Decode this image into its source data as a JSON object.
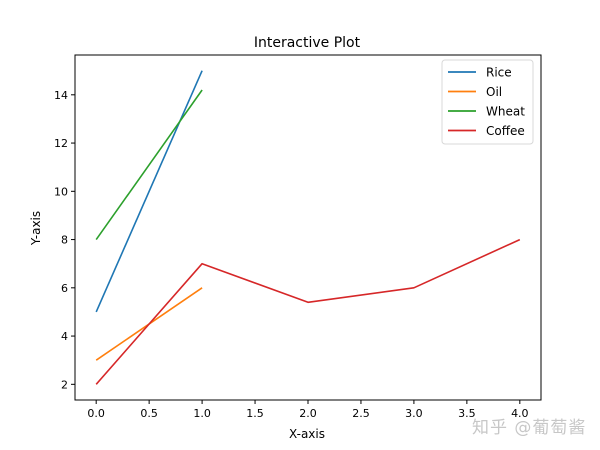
{
  "chart_data": {
    "type": "line",
    "title": "Interactive Plot",
    "xlabel": "X-axis",
    "ylabel": "Y-axis",
    "xlim": [
      -0.2,
      4.2
    ],
    "ylim": [
      1.35,
      15.65
    ],
    "xticks": [
      0.0,
      0.5,
      1.0,
      1.5,
      2.0,
      2.5,
      3.0,
      3.5,
      4.0
    ],
    "xtick_labels": [
      "0.0",
      "0.5",
      "1.0",
      "1.5",
      "2.0",
      "2.5",
      "3.0",
      "3.5",
      "4.0"
    ],
    "yticks": [
      2,
      4,
      6,
      8,
      10,
      12,
      14
    ],
    "ytick_labels": [
      "2",
      "4",
      "6",
      "8",
      "10",
      "12",
      "14"
    ],
    "grid": false,
    "legend_position": "upper right",
    "series": [
      {
        "name": "Rice",
        "color": "#1f77b4",
        "x": [
          0,
          1
        ],
        "y": [
          5,
          15
        ]
      },
      {
        "name": "Oil",
        "color": "#ff7f0e",
        "x": [
          0,
          1
        ],
        "y": [
          3,
          6
        ]
      },
      {
        "name": "Wheat",
        "color": "#2ca02c",
        "x": [
          0,
          1
        ],
        "y": [
          8,
          14.2
        ]
      },
      {
        "name": "Coffee",
        "color": "#d62728",
        "x": [
          0,
          1,
          2,
          3,
          4
        ],
        "y": [
          2,
          7,
          5.4,
          6,
          8
        ]
      }
    ]
  },
  "legend": {
    "items": [
      {
        "label": "Rice",
        "color": "#1f77b4"
      },
      {
        "label": "Oil",
        "color": "#ff7f0e"
      },
      {
        "label": "Wheat",
        "color": "#2ca02c"
      },
      {
        "label": "Coffee",
        "color": "#d62728"
      }
    ]
  },
  "watermark": {
    "text": "知乎 @葡萄酱"
  }
}
